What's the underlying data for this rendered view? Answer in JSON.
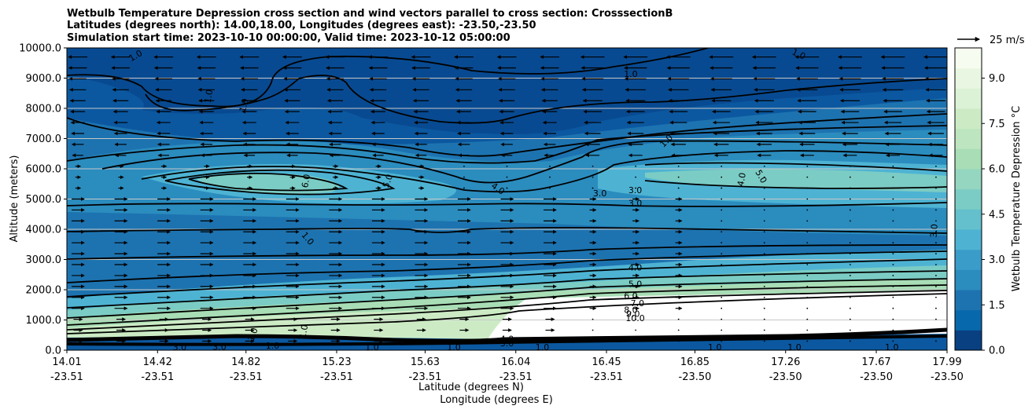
{
  "chart_data": {
    "type": "heatmap",
    "title_lines": [
      "Wetbulb Temperature Depression cross section and wind vectors parallel to cross section: CrosssectionB",
      "Latitudes (degrees north): 14.00,18.00, Longitudes (degrees east): -23.50,-23.50",
      "Simulation start time: 2023-10-10 00:00:00, Valid time: 2023-10-12 05:00:00"
    ],
    "ylabel": "Altitude (meters)",
    "xlabel_lat": "Latitude (degrees N)",
    "xlabel_lon": "Longitude (degrees E)",
    "ylim": [
      0,
      10000
    ],
    "yticks": [
      "0.0",
      "1000.0",
      "2000.0",
      "3000.0",
      "4000.0",
      "5000.0",
      "6000.0",
      "7000.0",
      "8000.0",
      "9000.0",
      "10000.0"
    ],
    "xticks_lat": [
      "14.01",
      "14.42",
      "14.82",
      "15.23",
      "15.63",
      "16.04",
      "16.45",
      "16.85",
      "17.26",
      "17.67",
      "17.99"
    ],
    "xticks_lon": [
      "-23.51",
      "-23.51",
      "-23.51",
      "-23.51",
      "-23.51",
      "-23.51",
      "-23.51",
      "-23.50",
      "-23.50",
      "-23.50",
      "-23.50"
    ],
    "colorbar": {
      "label": "Wetbulb Temperature Depression °C",
      "range": [
        0,
        10
      ],
      "ticks": [
        "0.0",
        "1.5",
        "3.0",
        "4.5",
        "6.0",
        "7.5",
        "9.0"
      ]
    },
    "quiver_key": "25 m/s",
    "contour_labels": [
      {
        "text": "1.0",
        "lat": 14.32,
        "alt": 9750,
        "rot": -30
      },
      {
        "text": "1.0",
        "lat": 14.65,
        "alt": 8400,
        "rot": -80
      },
      {
        "text": "1.0",
        "lat": 14.81,
        "alt": 8100,
        "rot": -75
      },
      {
        "text": "1.0",
        "lat": 16.56,
        "alt": 9140,
        "rot": 0
      },
      {
        "text": "1.0",
        "lat": 16.72,
        "alt": 6930,
        "rot": -45
      },
      {
        "text": "1.0",
        "lat": 17.32,
        "alt": 9800,
        "rot": 25
      },
      {
        "text": "1.0",
        "lat": 15.1,
        "alt": 3700,
        "rot": 50
      },
      {
        "text": "6.0",
        "lat": 15.09,
        "alt": 5600,
        "rot": -80
      },
      {
        "text": "5.0",
        "lat": 15.46,
        "alt": 5600,
        "rot": -70
      },
      {
        "text": "4.0",
        "lat": 15.96,
        "alt": 5350,
        "rot": 35
      },
      {
        "text": "3.0",
        "lat": 16.42,
        "alt": 5200,
        "rot": 0
      },
      {
        "text": "3.0",
        "lat": 16.58,
        "alt": 5300,
        "rot": 0
      },
      {
        "text": "3.0",
        "lat": 16.58,
        "alt": 4870,
        "rot": 0
      },
      {
        "text": "4.0",
        "lat": 17.06,
        "alt": 5650,
        "rot": -80
      },
      {
        "text": "5.0",
        "lat": 17.15,
        "alt": 5750,
        "rot": 60
      },
      {
        "text": "3.0",
        "lat": 17.93,
        "alt": 3950,
        "rot": -85
      },
      {
        "text": "4.0",
        "lat": 16.58,
        "alt": 2740,
        "rot": 0
      },
      {
        "text": "5.0",
        "lat": 16.58,
        "alt": 2200,
        "rot": 0
      },
      {
        "text": "6.0",
        "lat": 16.56,
        "alt": 1800,
        "rot": 0
      },
      {
        "text": "7.0",
        "lat": 16.59,
        "alt": 1560,
        "rot": 0
      },
      {
        "text": "8.0",
        "lat": 16.56,
        "alt": 1340,
        "rot": 0
      },
      {
        "text": "9.0",
        "lat": 16.57,
        "alt": 1210,
        "rot": 0
      },
      {
        "text": "10.0",
        "lat": 16.58,
        "alt": 1060,
        "rot": 0
      },
      {
        "text": "1.0",
        "lat": 15.08,
        "alt": 620,
        "rot": -80
      },
      {
        "text": "1.0",
        "lat": 14.85,
        "alt": 520,
        "rot": -70
      },
      {
        "text": "1.0",
        "lat": 14.94,
        "alt": 160,
        "rot": 0
      },
      {
        "text": "1.0",
        "lat": 15.39,
        "alt": 100,
        "rot": 0
      },
      {
        "text": "1.0",
        "lat": 15.76,
        "alt": 100,
        "rot": 0
      },
      {
        "text": "1.0",
        "lat": 16.16,
        "alt": 100,
        "rot": 0
      },
      {
        "text": "1.0",
        "lat": 16.94,
        "alt": 100,
        "rot": 0
      },
      {
        "text": "1.0",
        "lat": 17.3,
        "alt": 100,
        "rot": 0
      },
      {
        "text": "1.0",
        "lat": 17.74,
        "alt": 100,
        "rot": 0
      },
      {
        "text": "3.0",
        "lat": 14.52,
        "alt": 100,
        "rot": 0
      },
      {
        "text": "3.0",
        "lat": 14.7,
        "alt": 120,
        "rot": 0
      },
      {
        "text": "4.0",
        "lat": 16.0,
        "alt": 380,
        "rot": 0
      },
      {
        "text": "3.0",
        "lat": 16.0,
        "alt": 230,
        "rot": 0
      }
    ]
  }
}
